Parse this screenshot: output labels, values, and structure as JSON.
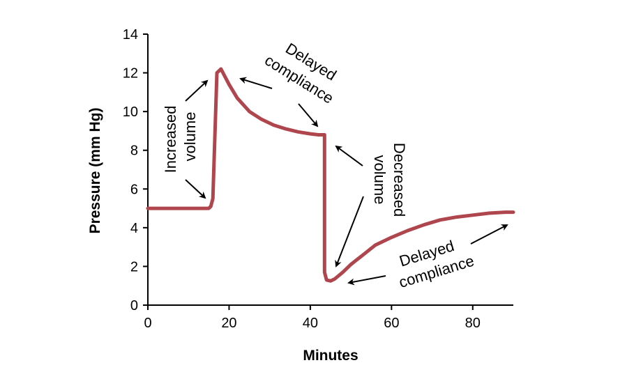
{
  "chart_data": {
    "type": "line",
    "title": "",
    "xlabel": "Minutes",
    "ylabel": "Pressure (mm Hg)",
    "xlim": [
      0,
      90
    ],
    "ylim": [
      0,
      14
    ],
    "xticks": [
      0,
      20,
      40,
      60,
      80
    ],
    "yticks": [
      0,
      2,
      4,
      6,
      8,
      10,
      12,
      14
    ],
    "grid": false,
    "series": [
      {
        "name": "Pressure",
        "color": "#b0464d",
        "x": [
          0,
          15,
          15.5,
          16,
          17,
          18,
          20,
          22,
          25,
          28,
          31,
          34,
          37,
          40,
          42,
          43.5,
          43.5,
          44,
          45,
          46,
          48,
          50,
          53,
          56,
          60,
          64,
          68,
          72,
          76,
          80,
          84,
          88,
          90
        ],
        "y": [
          5,
          5,
          5.1,
          5.5,
          12.0,
          12.2,
          11.4,
          10.7,
          10.0,
          9.6,
          9.3,
          9.1,
          8.95,
          8.85,
          8.8,
          8.8,
          1.7,
          1.3,
          1.25,
          1.35,
          1.7,
          2.1,
          2.6,
          3.1,
          3.5,
          3.85,
          4.15,
          4.4,
          4.55,
          4.65,
          4.75,
          4.8,
          4.8
        ]
      }
    ],
    "annotations": [
      {
        "lines": [
          "Increased",
          "volume"
        ],
        "rotation": "vertical"
      },
      {
        "lines": [
          "Delayed",
          "compliance"
        ],
        "rotation": "diagonal-down"
      },
      {
        "lines": [
          "Decreased",
          "volume"
        ],
        "rotation": "vertical"
      },
      {
        "lines": [
          "Delayed",
          "compliance"
        ],
        "rotation": "diagonal-up"
      }
    ]
  }
}
